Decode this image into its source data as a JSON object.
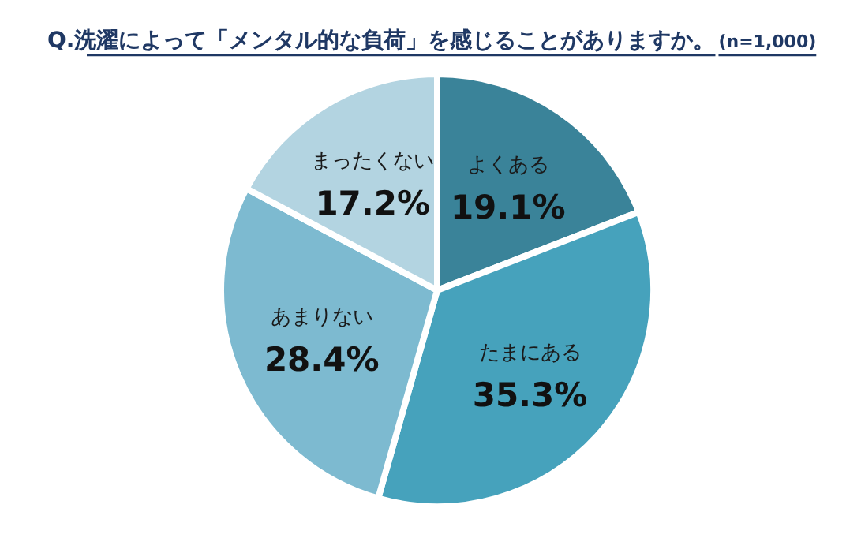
{
  "chart_data": {
    "type": "pie",
    "title": "Q.洗濯によって「メンタル的な負荷」を感じることがありますか。",
    "subtitle": "(n=1,000)",
    "categories": [
      "よくある",
      "たまにある",
      "あまりない",
      "まったくない"
    ],
    "values": [
      19.1,
      35.3,
      28.4,
      17.2
    ],
    "value_labels": [
      "19.1%",
      "35.3%",
      "28.4%",
      "17.2%"
    ],
    "colors": [
      "#3a8399",
      "#46a2bc",
      "#7dbad0",
      "#b3d4e1"
    ]
  }
}
